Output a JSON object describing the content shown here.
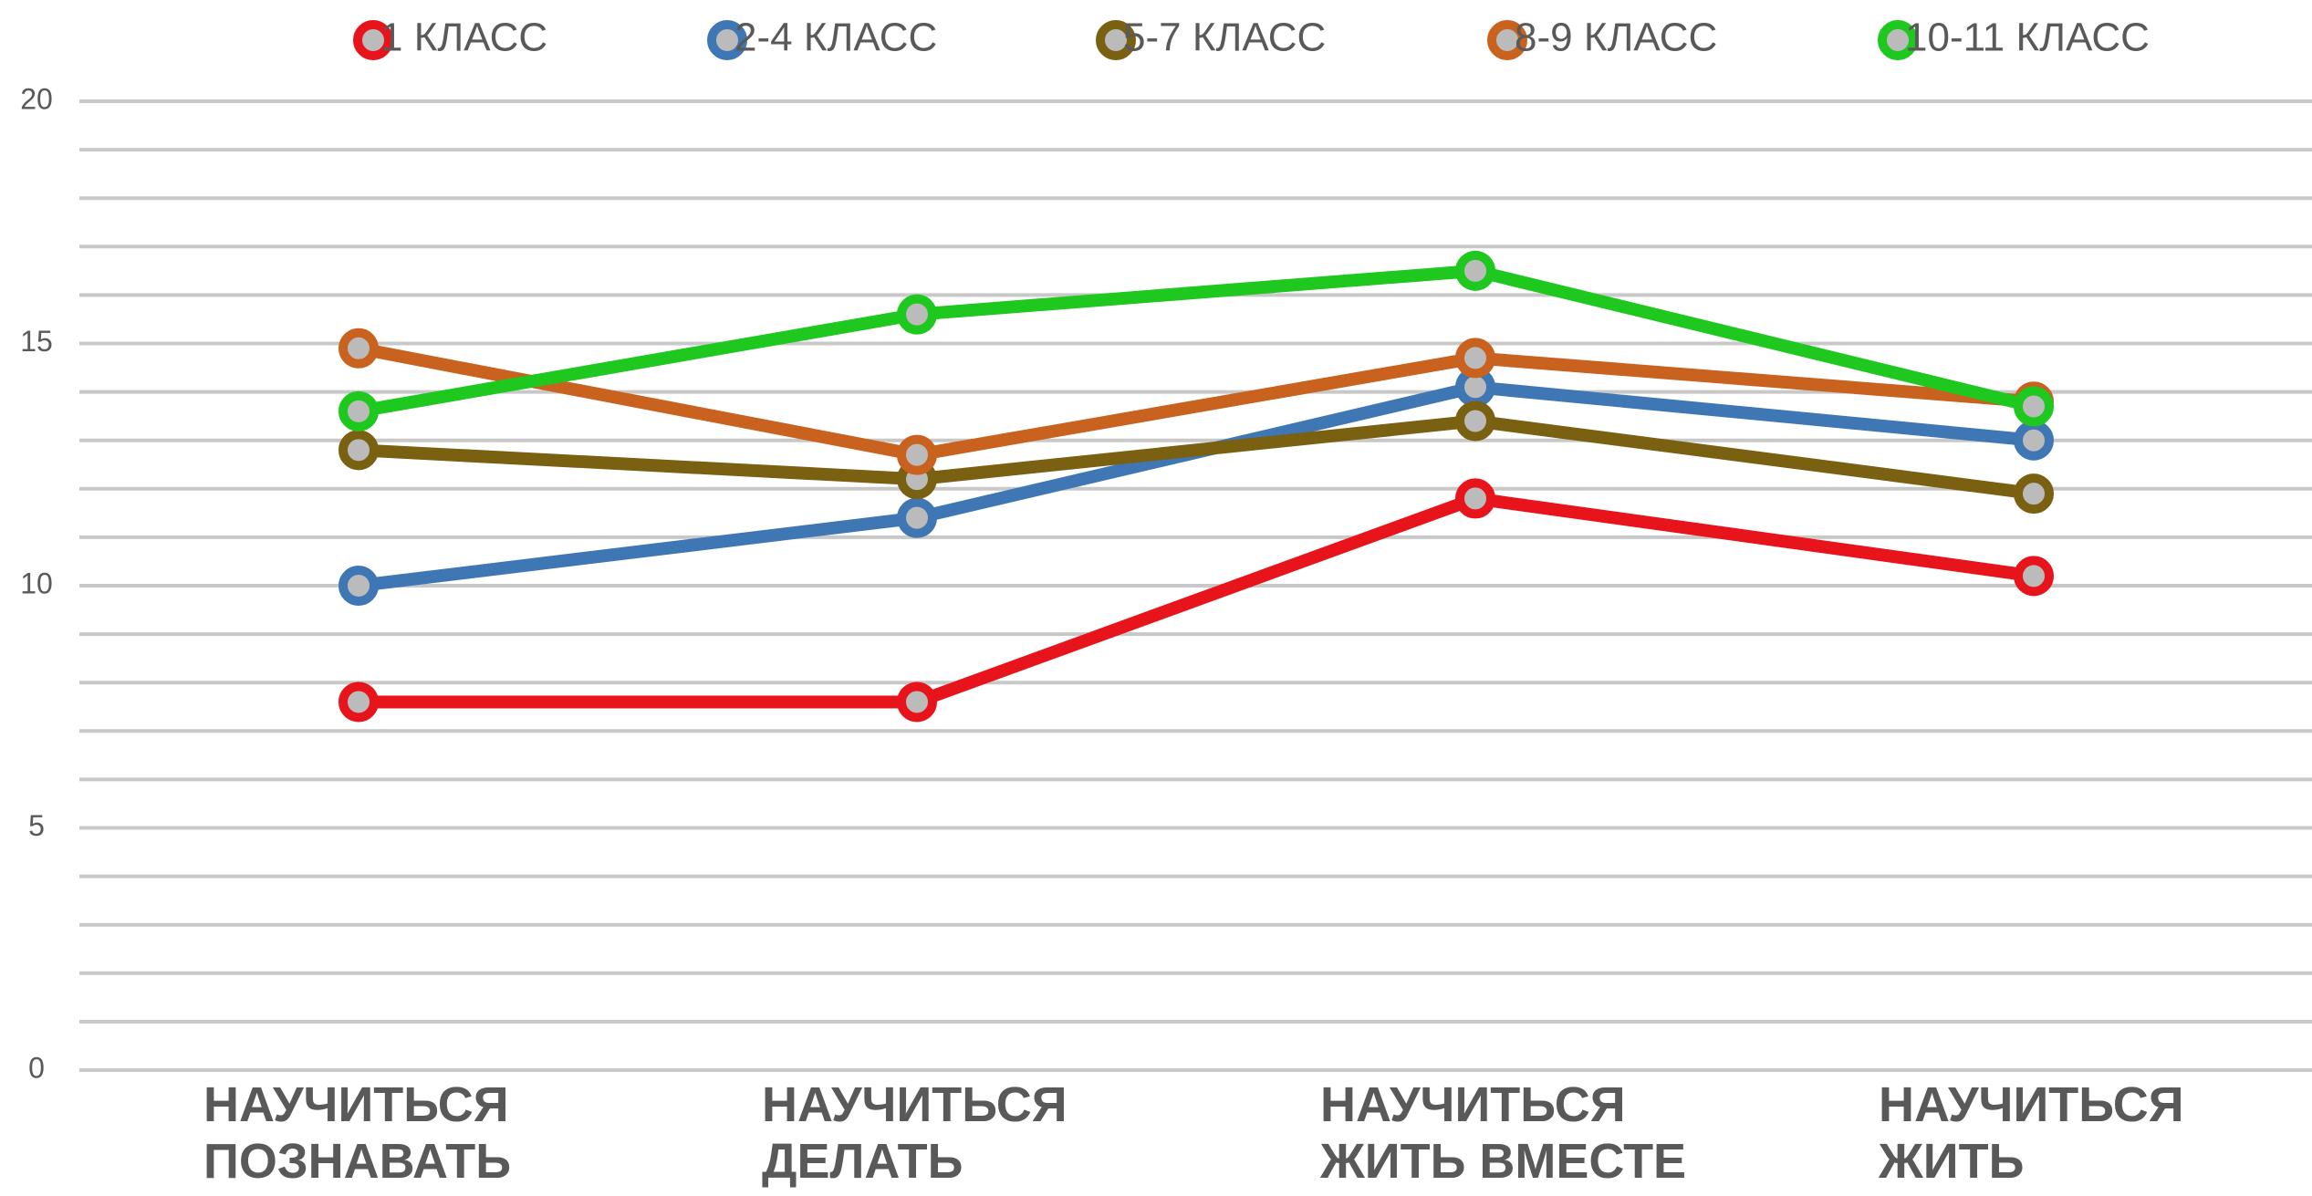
{
  "chart_data": {
    "type": "line",
    "categories": [
      "НАУЧИТЬСЯ ПОЗНАВАТЬ",
      "НАУЧИТЬСЯ ДЕЛАТЬ",
      "НАУЧИТЬСЯ ЖИТЬ ВМЕСТЕ",
      "НАУЧИТЬСЯ ЖИТЬ"
    ],
    "series": [
      {
        "name": "1 КЛАСС",
        "color": "#e8141b",
        "values": [
          7.6,
          7.6,
          11.8,
          10.2
        ]
      },
      {
        "name": "2-4 КЛАСС",
        "color": "#3f77b5",
        "values": [
          10.0,
          11.4,
          14.1,
          13.0
        ]
      },
      {
        "name": "5-7 КЛАСС",
        "color": "#7a6011",
        "values": [
          12.8,
          12.2,
          13.4,
          11.9
        ]
      },
      {
        "name": "8-9 КЛАСС",
        "color": "#c8621e",
        "values": [
          14.9,
          12.7,
          14.7,
          13.8
        ]
      },
      {
        "name": "10-11 КЛАСС",
        "color": "#1ec81e",
        "values": [
          13.6,
          15.6,
          16.5,
          13.7
        ]
      }
    ],
    "ylim": [
      0,
      20
    ],
    "yticks": [
      0,
      5,
      10,
      15,
      20
    ],
    "minor_yticks": [
      1,
      2,
      3,
      4,
      6,
      7,
      8,
      9,
      11,
      12,
      13,
      14,
      16,
      17,
      18,
      19
    ],
    "grid": true,
    "legend": "top"
  }
}
